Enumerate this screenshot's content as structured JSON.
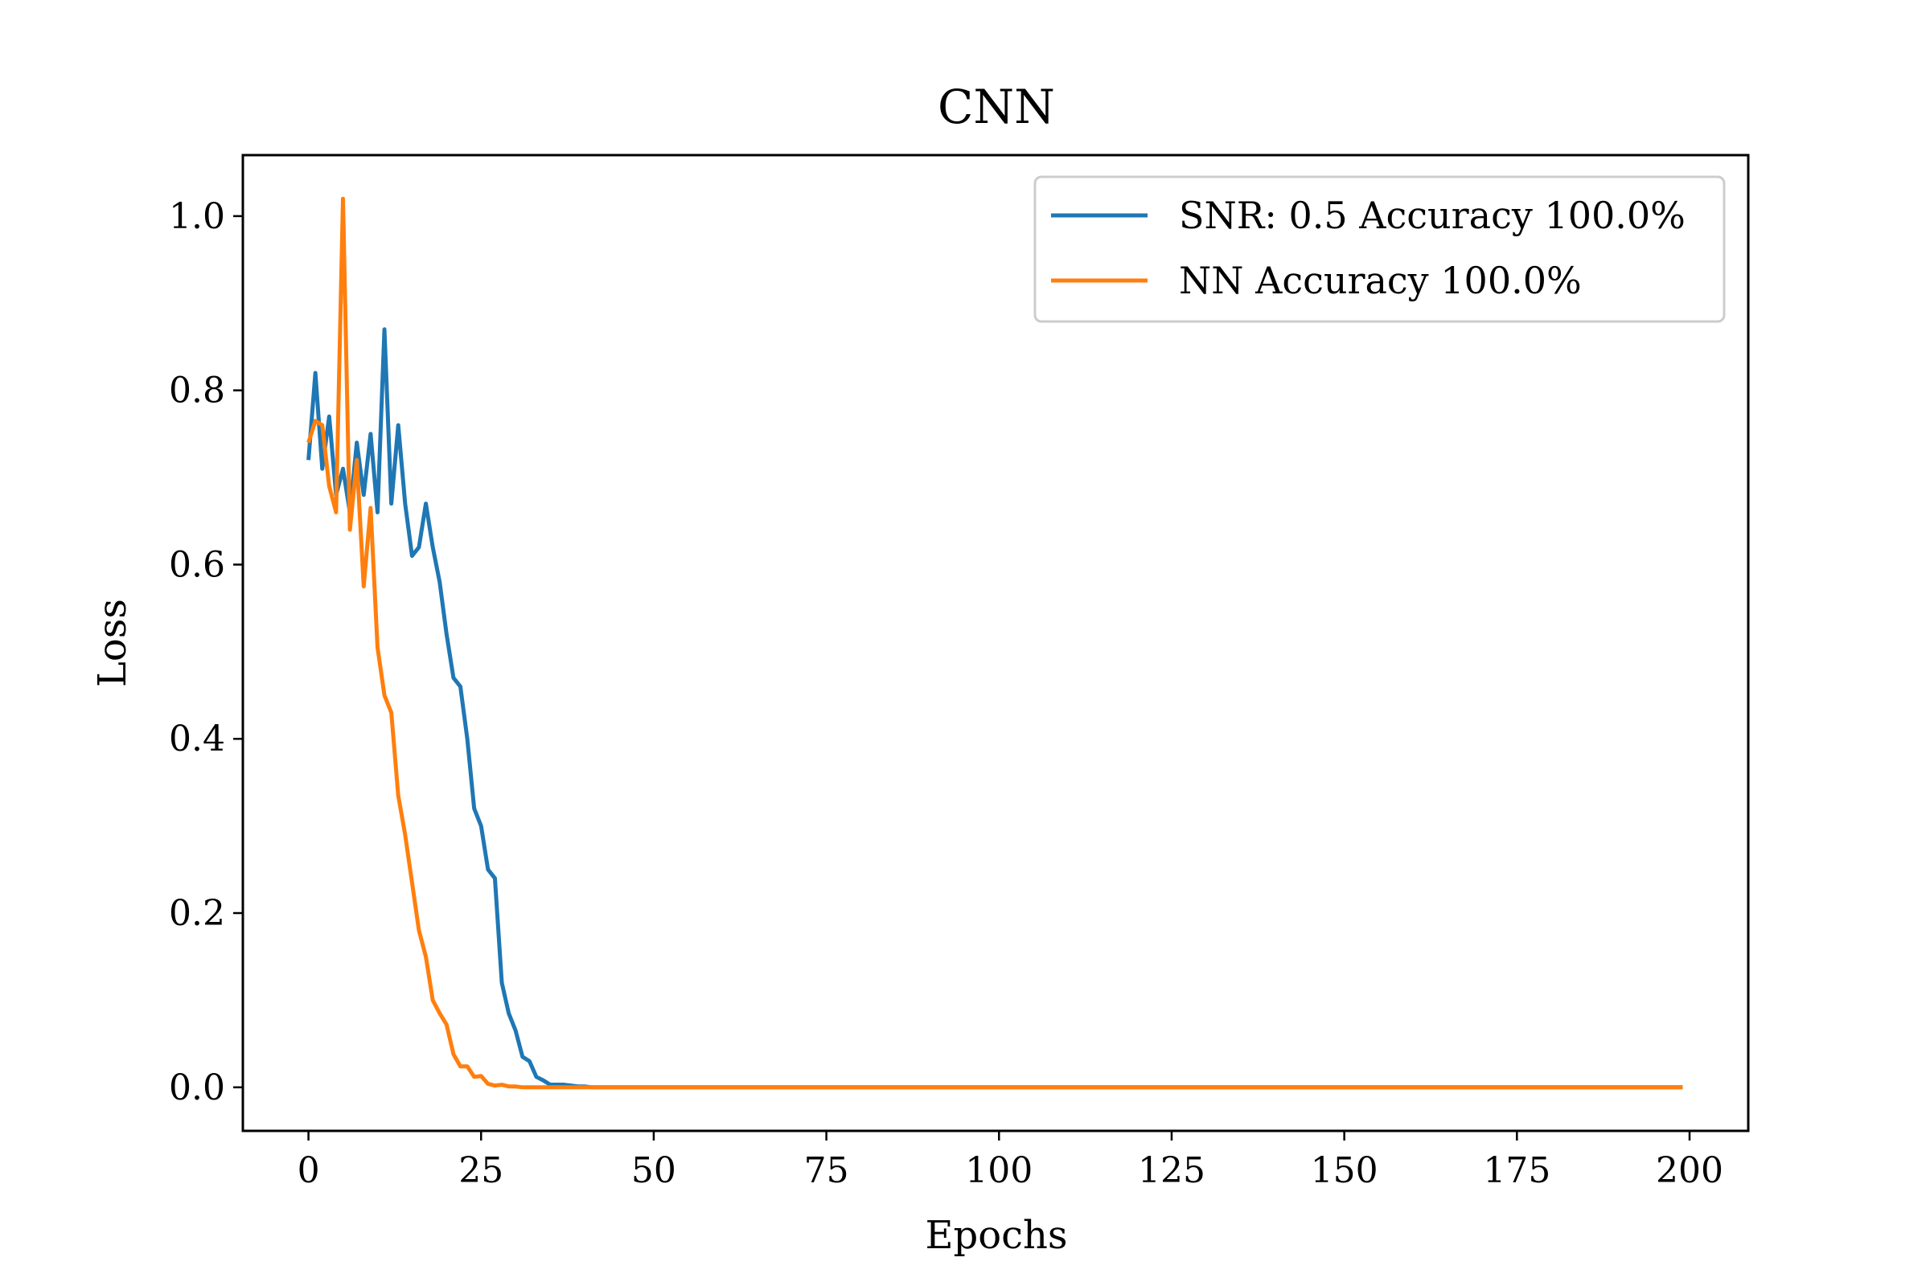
{
  "chart_data": {
    "type": "line",
    "title": "CNN",
    "xlabel": "Epochs",
    "ylabel": "Loss",
    "xlim": [
      -9.5,
      208.5
    ],
    "ylim": [
      -0.05,
      1.07
    ],
    "x_ticks": [
      0,
      25,
      50,
      75,
      100,
      125,
      150,
      175,
      200
    ],
    "x_tick_labels": [
      "0",
      "25",
      "50",
      "75",
      "100",
      "125",
      "150",
      "175",
      "200"
    ],
    "y_ticks": [
      0.0,
      0.2,
      0.4,
      0.6,
      0.8,
      1.0
    ],
    "y_tick_labels": [
      "0.0",
      "0.2",
      "0.4",
      "0.6",
      "0.8",
      "1.0"
    ],
    "grid": false,
    "legend_position": "top-right",
    "x_range": {
      "start": 0,
      "end": 199,
      "step": 1
    },
    "series": [
      {
        "name": "SNR: 0.5 Accuracy 100.0%",
        "color": "#1f77b4",
        "head": [
          0.72,
          0.82,
          0.71,
          0.77,
          0.68,
          0.71,
          0.66,
          0.74,
          0.68,
          0.75,
          0.66,
          0.87,
          0.67,
          0.76,
          0.67,
          0.61,
          0.62,
          0.67,
          0.62,
          0.58,
          0.52,
          0.47,
          0.46,
          0.4,
          0.32,
          0.3,
          0.25,
          0.24,
          0.12,
          0.085,
          0.065,
          0.035,
          0.03,
          0.012,
          0.008,
          0.003,
          0.003,
          0.003,
          0.002,
          0.001,
          0.001
        ],
        "tail_value": 0.0
      },
      {
        "name": "NN Accuracy 100.0%",
        "color": "#ff7f0e",
        "head": [
          0.74,
          0.765,
          0.76,
          0.69,
          0.66,
          1.02,
          0.64,
          0.72,
          0.575,
          0.665,
          0.505,
          0.45,
          0.43,
          0.335,
          0.29,
          0.235,
          0.18,
          0.15,
          0.1,
          0.085,
          0.072,
          0.038,
          0.024,
          0.024,
          0.012,
          0.013,
          0.004,
          0.002,
          0.003,
          0.001,
          0.001
        ],
        "tail_value": 0.0
      }
    ]
  }
}
